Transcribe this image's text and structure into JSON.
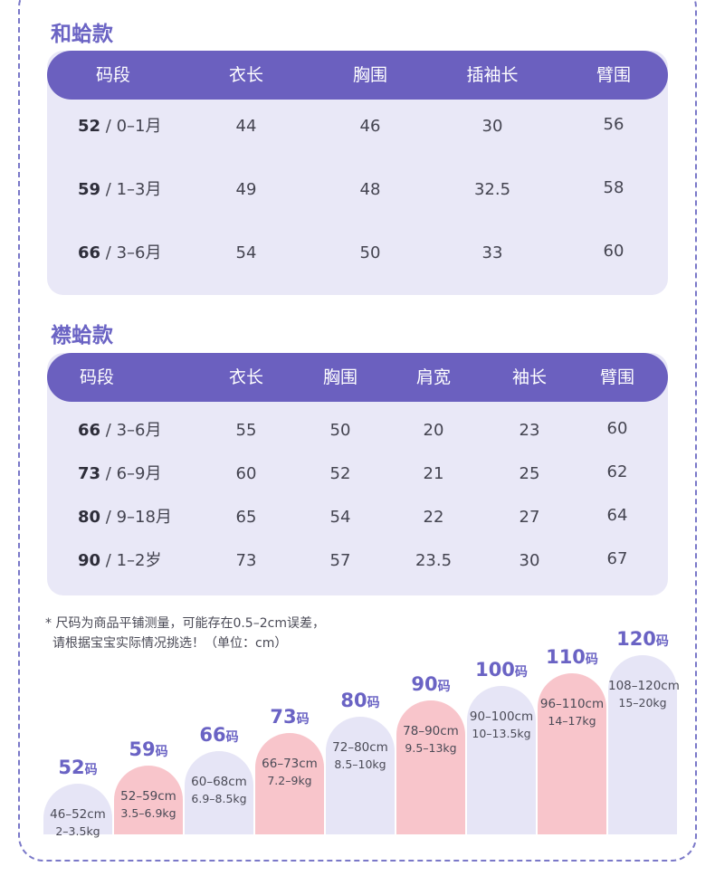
{
  "sections": [
    {
      "title": "和蛤款",
      "headers": [
        "码段",
        "衣长",
        "胸围",
        "插袖长",
        "臂围"
      ],
      "rows": [
        {
          "size": "52",
          "age": " / 0–1月",
          "values": [
            "44",
            "46",
            "30",
            "56"
          ]
        },
        {
          "size": "59",
          "age": " / 1–3月",
          "values": [
            "49",
            "48",
            "32.5",
            "58"
          ]
        },
        {
          "size": "66",
          "age": " / 3–6月",
          "values": [
            "54",
            "50",
            "33",
            "60"
          ]
        }
      ]
    },
    {
      "title": "襟蛤款",
      "headers": [
        "码段",
        "衣长",
        "胸围",
        "肩宽",
        "袖长",
        "臂围"
      ],
      "rows": [
        {
          "size": "66",
          "age": " / 3–6月",
          "values": [
            "55",
            "50",
            "20",
            "23",
            "60"
          ]
        },
        {
          "size": "73",
          "age": " / 6–9月",
          "values": [
            "60",
            "52",
            "21",
            "25",
            "62"
          ]
        },
        {
          "size": "80",
          "age": " / 9–18月",
          "values": [
            "65",
            "54",
            "22",
            "27",
            "64"
          ]
        },
        {
          "size": "90",
          "age": " / 1–2岁",
          "values": [
            "73",
            "57",
            "23.5",
            "30",
            "67"
          ]
        }
      ]
    }
  ],
  "note": {
    "line1": "* 尺码为商品平铺测量，可能存在0.5–2cm误差，",
    "line2": "请根据宝宝实际情况挑选！（单位：cm）"
  },
  "size_chart": {
    "unit": "码",
    "colors": {
      "lavender": "#e6e5f6",
      "pink": "#f8c5cb",
      "accent": "#6a63c4"
    },
    "columns": [
      {
        "size": "52",
        "height": "46–52cm",
        "weight": "2–3.5kg",
        "color": "lavender"
      },
      {
        "size": "59",
        "height": "52–59cm",
        "weight": "3.5–6.9kg",
        "color": "pink"
      },
      {
        "size": "66",
        "height": "60–68cm",
        "weight": "6.9–8.5kg",
        "color": "lavender"
      },
      {
        "size": "73",
        "height": "66–73cm",
        "weight": "7.2–9kg",
        "color": "pink"
      },
      {
        "size": "80",
        "height": "72–80cm",
        "weight": "8.5–10kg",
        "color": "lavender"
      },
      {
        "size": "90",
        "height": "78–90cm",
        "weight": "9.5–13kg",
        "color": "pink"
      },
      {
        "size": "100",
        "height": "90–100cm",
        "weight": "10–13.5kg",
        "color": "lavender"
      },
      {
        "size": "110",
        "height": "96–110cm",
        "weight": "14–17kg",
        "color": "pink"
      },
      {
        "size": "120",
        "height": "108–120cm",
        "weight": "15–20kg",
        "color": "lavender"
      }
    ]
  }
}
